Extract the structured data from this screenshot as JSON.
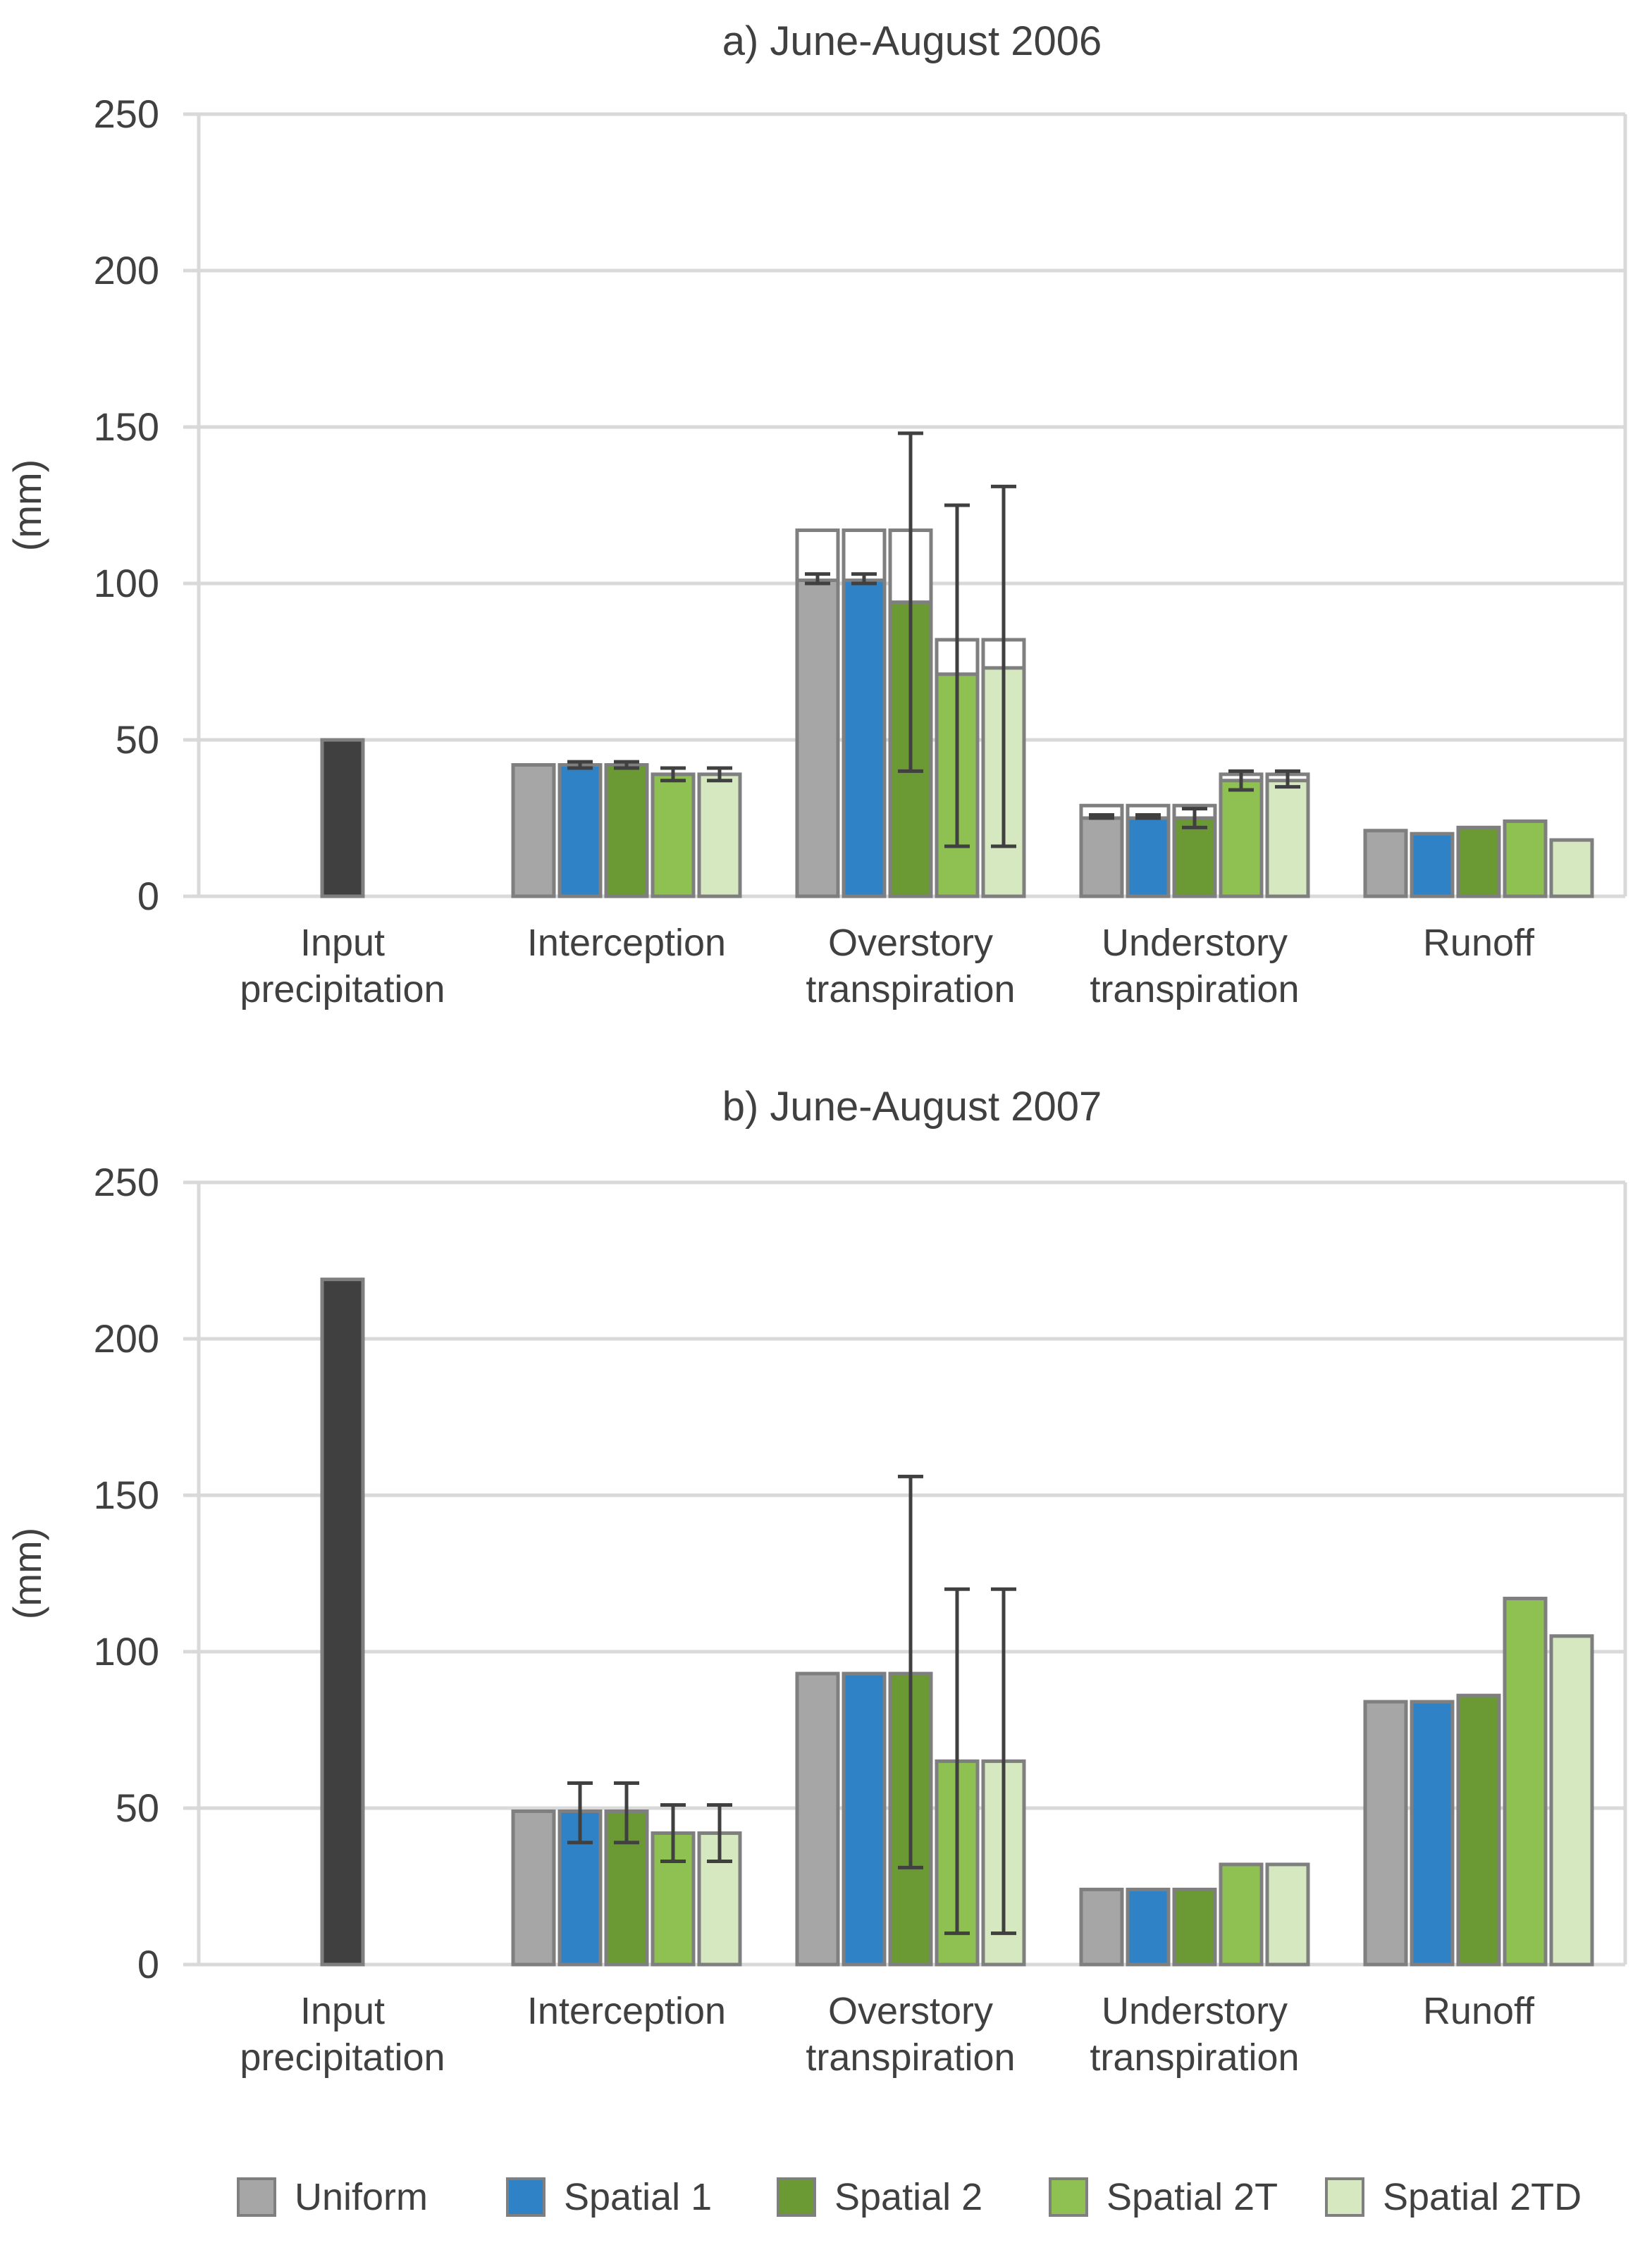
{
  "colors": {
    "input": "#404040",
    "uniform": "#a6a6a6",
    "spatial1": "#2f82c6",
    "spatial2": "#6b9a34",
    "spatial2t": "#8fc152",
    "spatial2td": "#d6e8c0",
    "bar_border": "#7f7f7f",
    "error_bar": "#404040",
    "grid": "#d9d9d9",
    "text": "#404040"
  },
  "legend": [
    {
      "key": "uniform",
      "label": "Uniform"
    },
    {
      "key": "spatial1",
      "label": "Spatial 1"
    },
    {
      "key": "spatial2",
      "label": "Spatial 2"
    },
    {
      "key": "spatial2t",
      "label": "Spatial 2T"
    },
    {
      "key": "spatial2td",
      "label": "Spatial 2TD"
    }
  ],
  "chart_data": [
    {
      "type": "bar",
      "title": "a) June-August 2006",
      "ylabel": "(mm)",
      "xlabel": "",
      "ylim": [
        0,
        250
      ],
      "yticks": [
        0,
        50,
        100,
        150,
        200,
        250
      ],
      "categories": [
        [
          "Input",
          "precipitation"
        ],
        [
          "Interception"
        ],
        [
          "Overstory",
          "transpiration"
        ],
        [
          "Understory",
          "transpiration"
        ],
        [
          "Runoff"
        ]
      ],
      "input_precipitation": 50,
      "series": [
        {
          "key": "uniform",
          "name": "Uniform",
          "values": [
            null,
            42,
            101,
            25,
            21
          ],
          "totals": [
            null,
            null,
            117,
            29,
            null
          ],
          "err_low": [
            null,
            null,
            100,
            25,
            null
          ],
          "err_high": [
            null,
            null,
            103,
            26,
            null
          ]
        },
        {
          "key": "spatial1",
          "name": "Spatial 1",
          "values": [
            null,
            42,
            101,
            25,
            20
          ],
          "totals": [
            null,
            null,
            117,
            29,
            null
          ],
          "err_low": [
            null,
            41,
            100,
            25,
            null
          ],
          "err_high": [
            null,
            43,
            103,
            26,
            null
          ]
        },
        {
          "key": "spatial2",
          "name": "Spatial 2",
          "values": [
            null,
            42,
            94,
            25,
            22
          ],
          "totals": [
            null,
            null,
            117,
            29,
            null
          ],
          "err_low": [
            null,
            41,
            40,
            22,
            null
          ],
          "err_high": [
            null,
            43,
            148,
            28,
            null
          ]
        },
        {
          "key": "spatial2t",
          "name": "Spatial 2T",
          "values": [
            null,
            39,
            71,
            37,
            24
          ],
          "totals": [
            null,
            null,
            82,
            39,
            null
          ],
          "err_low": [
            null,
            37,
            16,
            34,
            null
          ],
          "err_high": [
            null,
            41,
            125,
            40,
            null
          ]
        },
        {
          "key": "spatial2td",
          "name": "Spatial 2TD",
          "values": [
            null,
            39,
            73,
            37,
            18
          ],
          "totals": [
            null,
            null,
            82,
            39,
            null
          ],
          "err_low": [
            null,
            37,
            16,
            35,
            null
          ],
          "err_high": [
            null,
            41,
            131,
            40,
            null
          ]
        }
      ]
    },
    {
      "type": "bar",
      "title": "b) June-August 2007",
      "ylabel": "(mm)",
      "xlabel": "",
      "ylim": [
        0,
        250
      ],
      "yticks": [
        0,
        50,
        100,
        150,
        200,
        250
      ],
      "categories": [
        [
          "Input",
          "precipitation"
        ],
        [
          "Interception"
        ],
        [
          "Overstory",
          "transpiration"
        ],
        [
          "Understory",
          "transpiration"
        ],
        [
          "Runoff"
        ]
      ],
      "input_precipitation": 219,
      "series": [
        {
          "key": "uniform",
          "name": "Uniform",
          "values": [
            null,
            49,
            93,
            24,
            84
          ],
          "totals": [
            null,
            null,
            null,
            null,
            null
          ],
          "err_low": [
            null,
            null,
            null,
            null,
            null
          ],
          "err_high": [
            null,
            null,
            null,
            null,
            null
          ]
        },
        {
          "key": "spatial1",
          "name": "Spatial 1",
          "values": [
            null,
            49,
            93,
            24,
            84
          ],
          "totals": [
            null,
            null,
            null,
            null,
            null
          ],
          "err_low": [
            null,
            39,
            null,
            null,
            null
          ],
          "err_high": [
            null,
            58,
            null,
            null,
            null
          ]
        },
        {
          "key": "spatial2",
          "name": "Spatial 2",
          "values": [
            null,
            49,
            93,
            24,
            86
          ],
          "totals": [
            null,
            null,
            null,
            null,
            null
          ],
          "err_low": [
            null,
            39,
            31,
            null,
            null
          ],
          "err_high": [
            null,
            58,
            156,
            null,
            null
          ]
        },
        {
          "key": "spatial2t",
          "name": "Spatial 2T",
          "values": [
            null,
            42,
            65,
            32,
            117
          ],
          "totals": [
            null,
            null,
            null,
            null,
            null
          ],
          "err_low": [
            null,
            33,
            10,
            null,
            null
          ],
          "err_high": [
            null,
            51,
            120,
            null,
            null
          ]
        },
        {
          "key": "spatial2td",
          "name": "Spatial 2TD",
          "values": [
            null,
            42,
            65,
            32,
            105
          ],
          "totals": [
            null,
            null,
            null,
            null,
            null
          ],
          "err_low": [
            null,
            33,
            10,
            null,
            null
          ],
          "err_high": [
            null,
            51,
            120,
            null,
            null
          ]
        }
      ]
    }
  ]
}
